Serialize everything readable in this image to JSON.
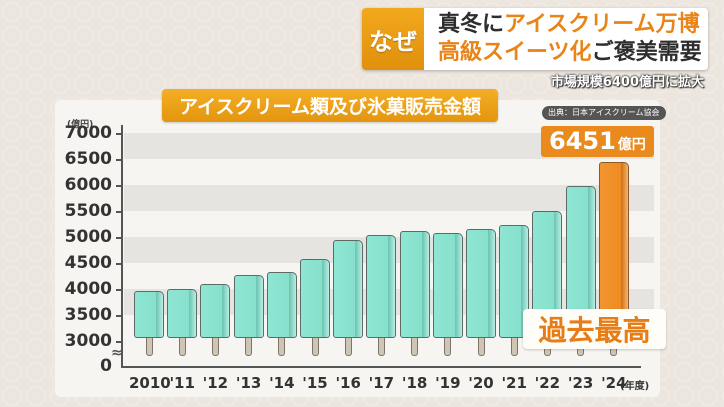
{
  "headline": {
    "tag": "なぜ",
    "line1_dark": "真冬に",
    "line1_orange": "アイスクリーム万博",
    "line2_orange": "高級スイーツ化",
    "line2_dark": "ご褒美需要",
    "subline": "市場規模6400億円に拡大"
  },
  "chart": {
    "title": "アイスクリーム類及び氷菓販売金額",
    "source": "出典：日本アイスクリーム協会",
    "unit": "(億円)",
    "x_unit": "(年度)",
    "callout_value": "6451",
    "callout_unit": "億円",
    "record_label": "過去最高",
    "axis_break": "≈",
    "colors": {
      "bar": "#86e0cc",
      "highlight": "#ef8b22",
      "accent": "#f0a01a"
    }
  },
  "chart_data": {
    "type": "bar",
    "title": "アイスクリーム類及び氷菓販売金額",
    "xlabel": "(年度)",
    "ylabel": "(億円)",
    "categories": [
      "2010",
      "'11",
      "'12",
      "'13",
      "'14",
      "'15",
      "'16",
      "'17",
      "'18",
      "'19",
      "'20",
      "'21",
      "'22",
      "'23",
      "'24"
    ],
    "values": [
      3960,
      4000,
      4090,
      4270,
      4330,
      4580,
      4940,
      5040,
      5120,
      5080,
      5160,
      5240,
      5500,
      5980,
      6451
    ],
    "y_ticks": [
      "0",
      "3000",
      "3500",
      "4000",
      "4500",
      "5000",
      "5500",
      "6000",
      "6500",
      "7000"
    ],
    "ylim": [
      0,
      7000
    ],
    "axis_break": "between 0 and 3000",
    "highlight": {
      "category": "'24",
      "label": "6451億円",
      "annotation": "過去最高"
    },
    "source": "出典：日本アイスクリーム協会",
    "grid": "alternating horizontal bands",
    "legend": null
  }
}
